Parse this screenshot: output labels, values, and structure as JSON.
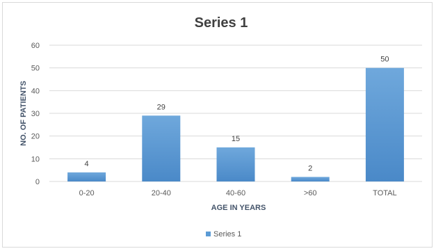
{
  "chart_data": {
    "type": "bar",
    "title": "Series 1",
    "categories": [
      "0-20",
      "20-40",
      "40-60",
      ">60",
      "TOTAL"
    ],
    "series": [
      {
        "name": "Series 1",
        "values": [
          4,
          29,
          15,
          2,
          50
        ]
      }
    ],
    "data_labels": [
      "4",
      "29",
      "15",
      "2",
      "50"
    ],
    "xlabel": "AGE IN YEARS",
    "ylabel": "NO. OF PATIENTS",
    "ylim": [
      0,
      60
    ],
    "yticks": [
      0,
      10,
      20,
      30,
      40,
      50,
      60
    ],
    "grid": true,
    "legend": "bottom",
    "colors": {
      "bar": "#5b9bd5",
      "bar_top": "#6fa8dc",
      "grid": "#d9d9d9",
      "text": "#404040"
    }
  }
}
